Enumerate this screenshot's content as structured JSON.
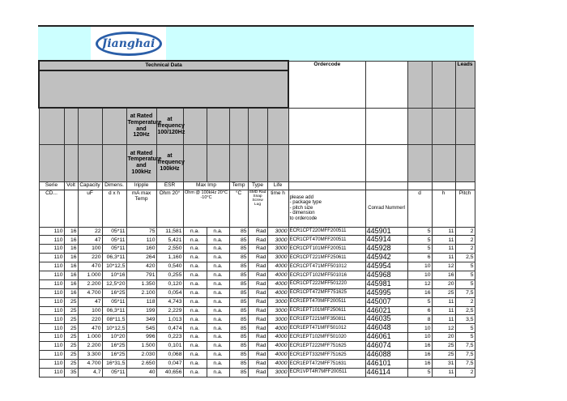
{
  "logo": {
    "text": "Jianghai",
    "color": "#2a5ea8"
  },
  "colors": {
    "banner": "#ccffff",
    "header_gray": "#c0c0c0"
  },
  "header": {
    "technical_data": "Technical Data",
    "ordercode": "Ordercode",
    "leads": "Leads",
    "ripple_note1": "at Rated Temperature and 120Hz",
    "esr_note1": "at frequency 100/120Hz",
    "ripple_note2": "at Rated Temperature and 100kHz",
    "esr_note2": "at frequency 100kHz"
  },
  "labels": [
    "Serie",
    "Volt",
    "Capacity",
    "Dimens.",
    "Iripple",
    "ESR",
    "Max Imp",
    "Temp",
    "Type",
    "Life"
  ],
  "units": {
    "serie": "CD...",
    "capacity": "uF",
    "dimens": "d x h",
    "ripple": "mA max Temp",
    "esr": "Ohm 20°",
    "maximp": "Ohm @ 100kHz 20°C -10°C",
    "temp": "°C",
    "type": "SMD Rad Snap Screw Lug",
    "life": "time h",
    "ordercode": "please add\n- package type\n- pitch size\n- dimension\nto ordercode",
    "conrad": "Conrad Nummerl",
    "d": "d",
    "h": "h",
    "pitch": "Pitch"
  },
  "rows": [
    [
      "110",
      "16",
      "22",
      "05*11",
      "75",
      "11,581",
      "n.a.",
      "n.a.",
      "85",
      "Rad",
      "3000",
      "ECR1CPT220MFF200511",
      "445901",
      "5",
      "11",
      "2"
    ],
    [
      "110",
      "16",
      "47",
      "05*11",
      "110",
      "5,421",
      "n.a.",
      "n.a.",
      "85",
      "Rad",
      "3000",
      "ECR1CPT470MFF200511",
      "445914",
      "5",
      "11",
      "2"
    ],
    [
      "110",
      "16",
      "100",
      "05*11",
      "160",
      "2,550",
      "n.a.",
      "n.a.",
      "85",
      "Rad",
      "3000",
      "ECR1CPT101MFF200511",
      "445928",
      "5",
      "11",
      "2"
    ],
    [
      "110",
      "16",
      "220",
      "06,3*11",
      "264",
      "1,160",
      "n.a.",
      "n.a.",
      "85",
      "Rad",
      "3000",
      "ECR1CPT221MFF250611",
      "445942",
      "6",
      "11",
      "2,5"
    ],
    [
      "110",
      "16",
      "470",
      "10*12,5",
      "420",
      "0,540",
      "n.a.",
      "n.a.",
      "85",
      "Rad",
      "4000",
      "ECR1CPT471MFF501012",
      "445954",
      "10",
      "12",
      "5"
    ],
    [
      "110",
      "16",
      "1.000",
      "10*16",
      "791",
      "0,255",
      "n.a.",
      "n.a.",
      "85",
      "Rad",
      "4000",
      "ECR1CPT102MFF501016",
      "445968",
      "10",
      "16",
      "5"
    ],
    [
      "110",
      "16",
      "2.200",
      "12,5*20",
      "1.350",
      "0,120",
      "n.a.",
      "n.a.",
      "85",
      "Rad",
      "4000",
      "ECR1CPT222MFF501220",
      "445981",
      "12",
      "20",
      "5"
    ],
    [
      "110",
      "16",
      "4.700",
      "16*25",
      "2.100",
      "0,054",
      "n.a.",
      "n.a.",
      "85",
      "Rad",
      "4000",
      "ECR1CPT472MFF751625",
      "445995",
      "16",
      "25",
      "7,5"
    ],
    [
      "110",
      "25",
      "47",
      "05*11",
      "118",
      "4,743",
      "n.a.",
      "n.a.",
      "85",
      "Rad",
      "3000",
      "ECR1EPT470MFF200511",
      "445007",
      "5",
      "11",
      "2"
    ],
    [
      "110",
      "25",
      "100",
      "06,3*11",
      "199",
      "2,229",
      "n.a.",
      "n.a.",
      "85",
      "Rad",
      "3000",
      "ECR1EPT101MFF250611",
      "446021",
      "6",
      "11",
      "2,5"
    ],
    [
      "110",
      "25",
      "220",
      "08*11,5",
      "349",
      "1,013",
      "n.a.",
      "n.a.",
      "85",
      "Rad",
      "3000",
      "ECR1EPT221MFF350811",
      "446035",
      "8",
      "11",
      "3,5"
    ],
    [
      "110",
      "25",
      "470",
      "10*12,5",
      "545",
      "0,474",
      "n.a.",
      "n.a.",
      "85",
      "Rad",
      "4000",
      "ECR1EPT471MFF501012",
      "446048",
      "10",
      "12",
      "5"
    ],
    [
      "110",
      "25",
      "1.000",
      "10*20",
      "996",
      "0,223",
      "n.a.",
      "n.a.",
      "85",
      "Rad",
      "4000",
      "ECR1EPT102MFF501020",
      "446061",
      "10",
      "20",
      "5"
    ],
    [
      "110",
      "25",
      "2.200",
      "16*25",
      "1.500",
      "0,101",
      "n.a.",
      "n.a.",
      "85",
      "Rad",
      "4000",
      "ECR1EPT222MFF751625",
      "446074",
      "16",
      "25",
      "7,5"
    ],
    [
      "110",
      "25",
      "3.300",
      "16*25",
      "2.030",
      "0,068",
      "n.a.",
      "n.a.",
      "85",
      "Rad",
      "4000",
      "ECR1EPT332MFF751625",
      "446088",
      "16",
      "25",
      "7,5"
    ],
    [
      "110",
      "25",
      "4.700",
      "16*31,5",
      "2.650",
      "0,047",
      "n.a.",
      "n.a.",
      "85",
      "Rad",
      "4000",
      "ECR1EPT472MFF751631",
      "446101",
      "16",
      "31",
      "7,5"
    ],
    [
      "110",
      "35",
      "4,7",
      "05*11",
      "40",
      "40,656",
      "n.a.",
      "n.a.",
      "85",
      "Rad",
      "3000",
      "ECR1VPT4R7MFF200511",
      "446114",
      "5",
      "11",
      "2"
    ]
  ]
}
